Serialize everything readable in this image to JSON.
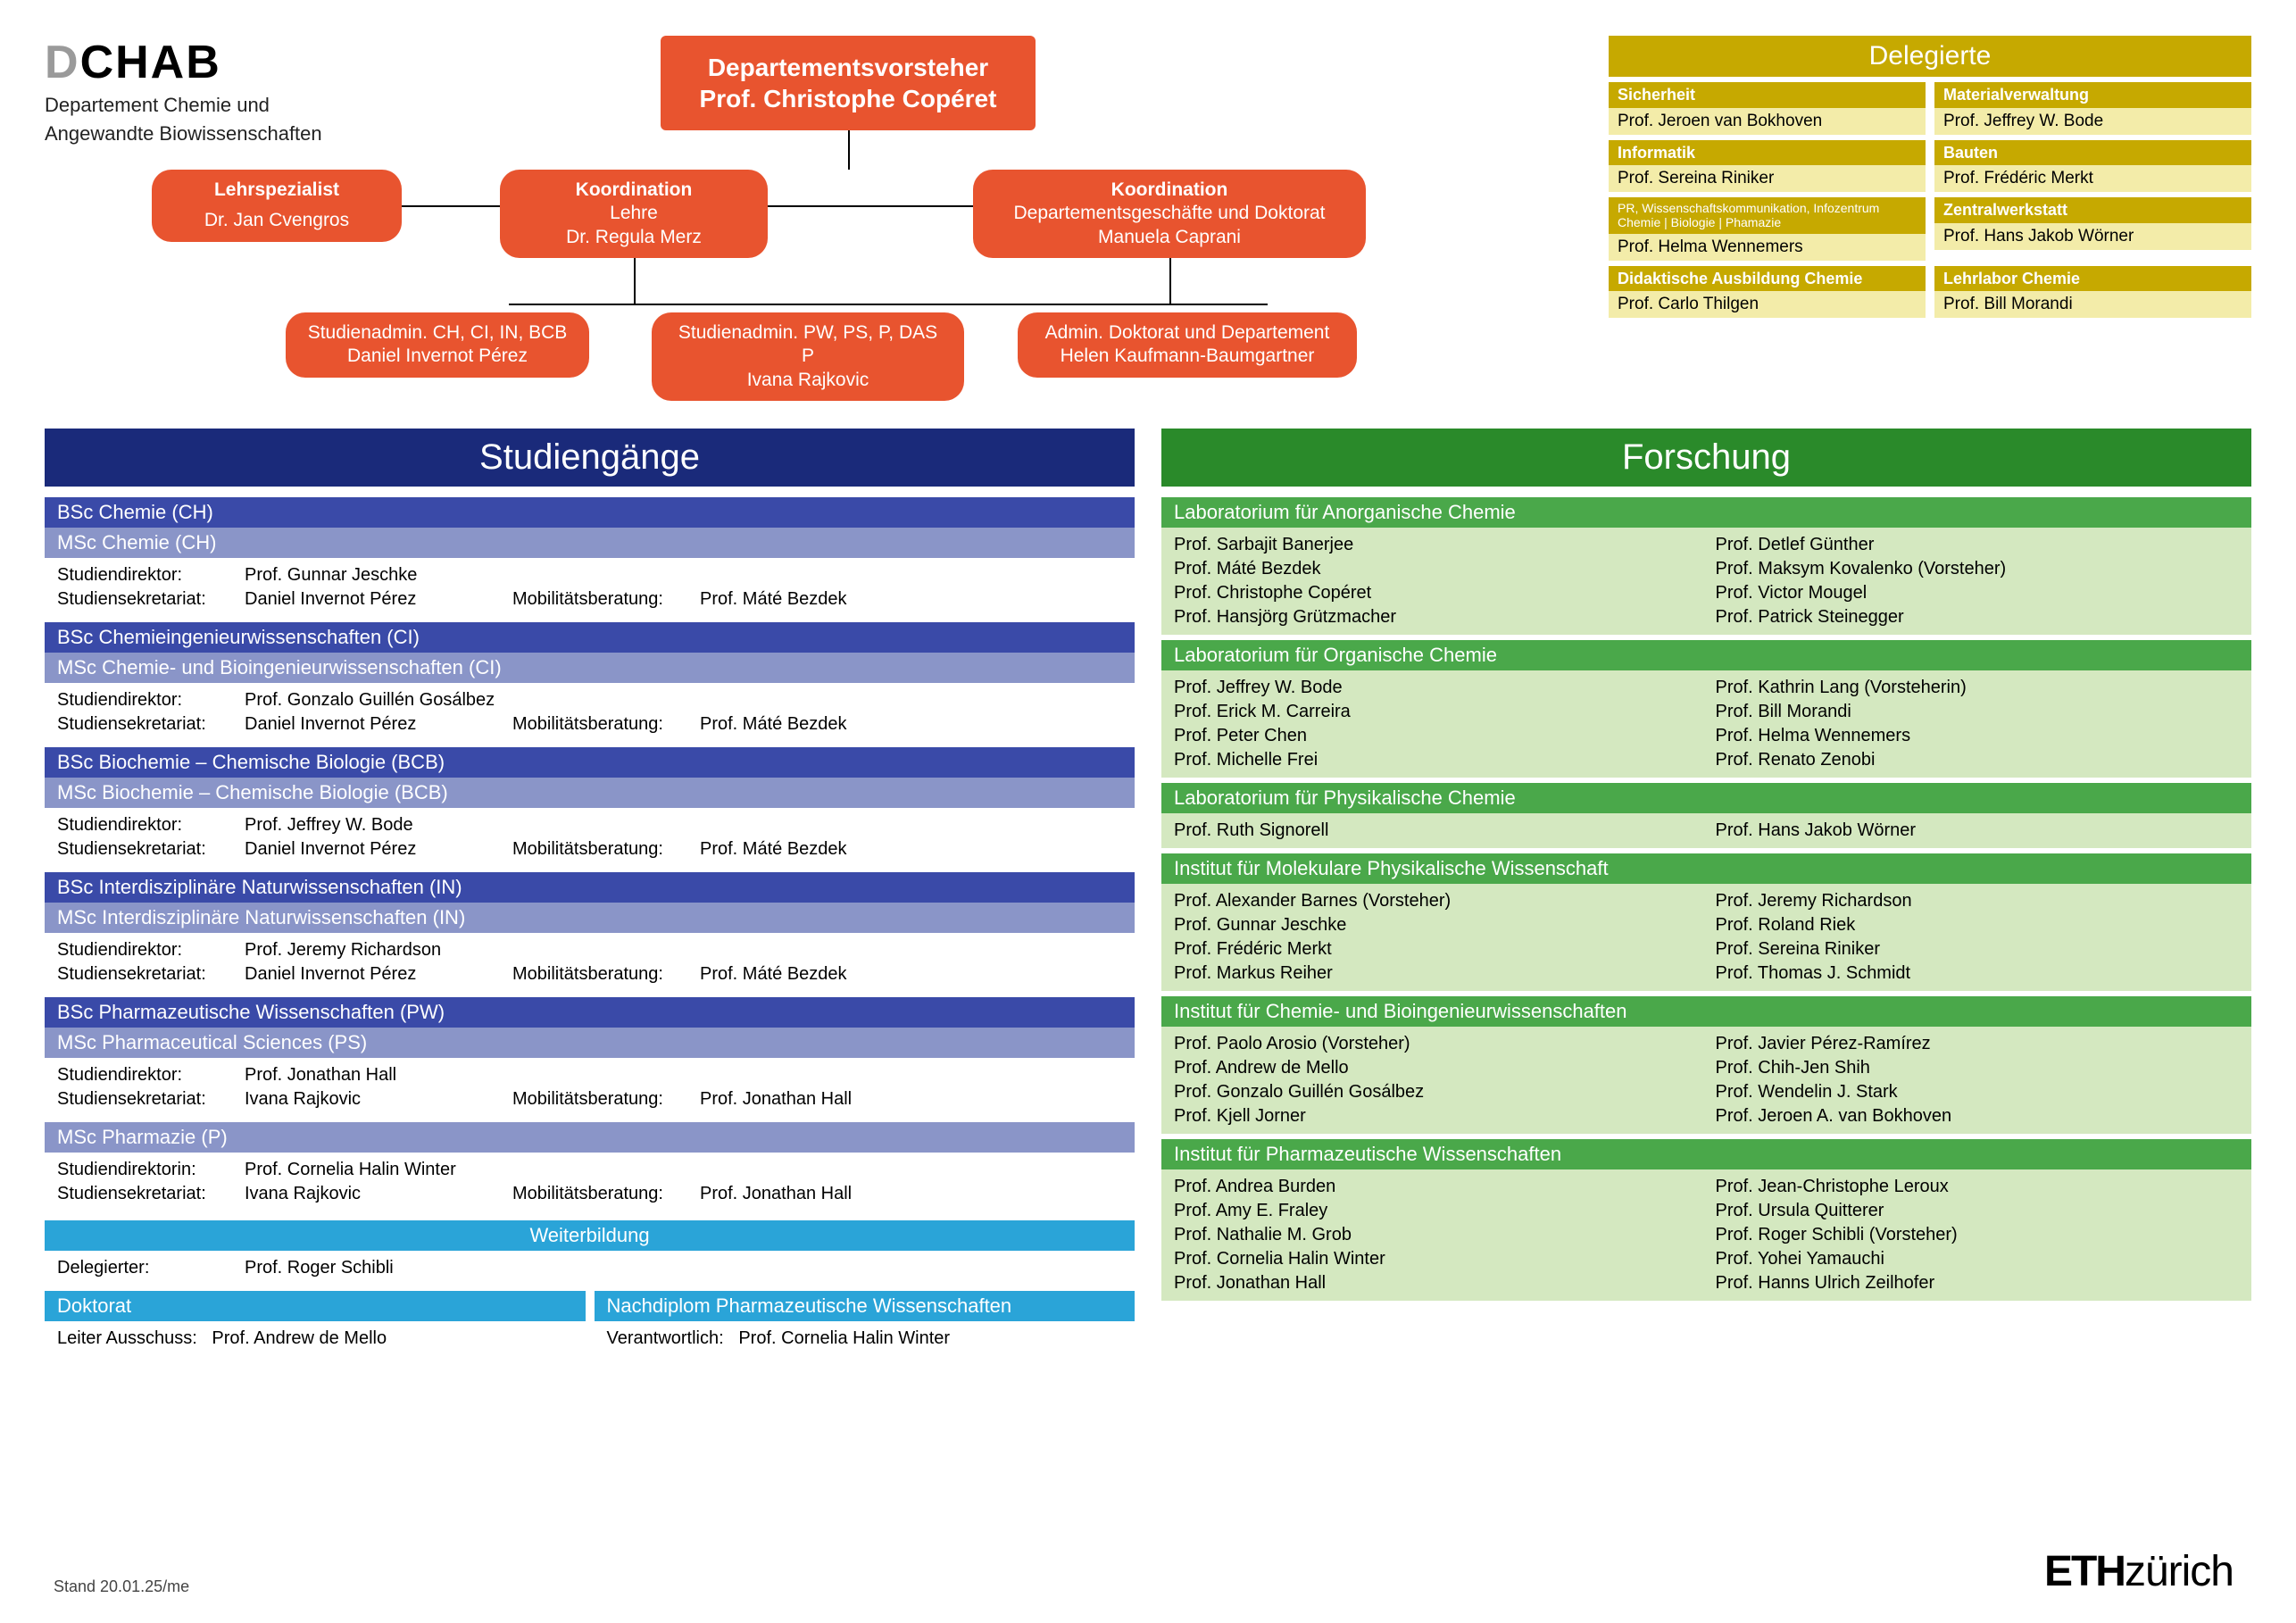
{
  "colors": {
    "orange": "#e8542f",
    "olive": "#c6a900",
    "olive_light": "#f3eca9",
    "blue_dark": "#1a2a7a",
    "blue_med": "#3a4aa8",
    "blue_light": "#8a95c8",
    "cyan": "#2aa4d8",
    "green_dark": "#2a8a2a",
    "green_med": "#4aa84a",
    "green_light": "#d4e8c0",
    "grey": "#9a9a9a"
  },
  "logo": {
    "d": "D",
    "chab": "CHAB",
    "sub1": "Departement Chemie und",
    "sub2": "Angewandte Biowissenschaften"
  },
  "org": {
    "head_t1": "Departementsvorsteher",
    "head_t2": "Prof. Christophe Copéret",
    "lehr_t1": "Lehrspezialist",
    "lehr_t2": "Dr. Jan Cvengros",
    "koord1_t1": "Koordination",
    "koord1_t2": "Lehre",
    "koord1_t3": "Dr. Regula Merz",
    "koord2_t1": "Koordination",
    "koord2_t2": "Departementsgeschäfte und Doktorat",
    "koord2_t3": "Manuela Caprani",
    "sa1_t1": "Studienadmin. CH, CI, IN, BCB",
    "sa1_t2": "Daniel Invernot Pérez",
    "sa2_t1": "Studienadmin. PW, PS, P, DAS P",
    "sa2_t2": "Ivana Rajkovic",
    "sa3_t1": "Admin. Doktorat und Departement",
    "sa3_t2": "Helen Kaufmann-Baumgartner"
  },
  "delegates": {
    "title": "Delegierte",
    "items": [
      {
        "h": "Sicherheit",
        "b": "Prof. Jeroen van Bokhoven"
      },
      {
        "h": "Materialverwaltung",
        "b": "Prof. Jeffrey W. Bode"
      },
      {
        "h": "Informatik",
        "b": "Prof. Sereina Riniker"
      },
      {
        "h": "Bauten",
        "b": "Prof. Frédéric Merkt"
      },
      {
        "h": "PR, Wissenschaftskommunikation, Infozentrum Chemie | Biologie | Phamazie",
        "sm": true,
        "b": "Prof. Helma Wennemers"
      },
      {
        "h": "Zentralwerkstatt",
        "b": "Prof. Hans Jakob Wörner"
      },
      {
        "h": "Didaktische Ausbildung Chemie",
        "b": "Prof. Carlo Thilgen"
      },
      {
        "h": "Lehrlabor Chemie",
        "b": "Prof. Bill Morandi"
      }
    ]
  },
  "study": {
    "title": "Studiengänge",
    "programs": [
      {
        "bsc": "BSc Chemie (CH)",
        "msc": "MSc Chemie (CH)",
        "dir_l": "Studiendirektor:",
        "dir": "Prof. Gunnar Jeschke",
        "sek_l": "Studiensekretariat:",
        "sek": "Daniel Invernot Pérez",
        "mob_l": "Mobilitätsberatung:",
        "mob": "Prof. Máté Bezdek"
      },
      {
        "bsc": "BSc Chemieingenieurwissenschaften (CI)",
        "msc": "MSc Chemie- und Bioingenieurwissenschaften (CI)",
        "dir_l": "Studiendirektor:",
        "dir": "Prof. Gonzalo Guillén Gosálbez",
        "sek_l": "Studiensekretariat:",
        "sek": "Daniel Invernot Pérez",
        "mob_l": "Mobilitätsberatung:",
        "mob": "Prof. Máté Bezdek"
      },
      {
        "bsc": "BSc Biochemie – Chemische Biologie (BCB)",
        "msc": "MSc Biochemie – Chemische Biologie (BCB)",
        "dir_l": "Studiendirektor:",
        "dir": "Prof. Jeffrey W. Bode",
        "sek_l": "Studiensekretariat:",
        "sek": "Daniel Invernot Pérez",
        "mob_l": "Mobilitätsberatung:",
        "mob": "Prof. Máté Bezdek"
      },
      {
        "bsc": "BSc Interdisziplinäre Naturwissenschaften (IN)",
        "msc": "MSc Interdisziplinäre Naturwissenschaften (IN)",
        "dir_l": "Studiendirektor:",
        "dir": "Prof. Jeremy Richardson",
        "sek_l": "Studiensekretariat:",
        "sek": "Daniel Invernot Pérez",
        "mob_l": "Mobilitätsberatung:",
        "mob": "Prof. Máté Bezdek"
      },
      {
        "bsc": "BSc Pharmazeutische Wissenschaften (PW)",
        "msc": "MSc Pharmaceutical Sciences (PS)",
        "dir_l": "Studiendirektor:",
        "dir": "Prof. Jonathan Hall",
        "sek_l": "Studiensekretariat:",
        "sek": "Ivana Rajkovic",
        "mob_l": "Mobilitätsberatung:",
        "mob": "Prof. Jonathan Hall"
      }
    ],
    "p_only": {
      "msc": "MSc Pharmazie (P)",
      "dir_l": "Studiendirektorin:",
      "dir": "Prof. Cornelia Halin Winter",
      "sek_l": "Studiensekretariat:",
      "sek": "Ivana Rajkovic",
      "mob_l": "Mobilitätsberatung:",
      "mob": "Prof. Jonathan Hall"
    },
    "wb_title": "Weiterbildung",
    "wb_del_l": "Delegierter:",
    "wb_del": "Prof. Roger Schibli",
    "dok_title": "Doktorat",
    "dok_l": "Leiter Ausschuss:",
    "dok": "Prof. Andrew de Mello",
    "nd_title": "Nachdiplom Pharmazeutische Wissenschaften",
    "nd_l": "Verantwortlich:",
    "nd": "Prof. Cornelia Halin Winter"
  },
  "research": {
    "title": "Forschung",
    "labs": [
      {
        "h": "Laboratorium für Anorganische Chemie",
        "left": [
          "Prof. Sarbajit Banerjee",
          "Prof. Máté Bezdek",
          "Prof. Christophe Copéret",
          "Prof. Hansjörg Grützmacher"
        ],
        "right": [
          "Prof. Detlef Günther",
          "Prof. Maksym Kovalenko (Vorsteher)",
          "Prof. Victor Mougel",
          "Prof. Patrick Steinegger"
        ]
      },
      {
        "h": "Laboratorium für Organische Chemie",
        "left": [
          "Prof. Jeffrey W. Bode",
          "Prof. Erick M. Carreira",
          "Prof. Peter Chen",
          "Prof. Michelle Frei"
        ],
        "right": [
          "Prof. Kathrin Lang (Vorsteherin)",
          "Prof. Bill Morandi",
          "Prof. Helma Wennemers",
          "Prof. Renato Zenobi"
        ]
      },
      {
        "h": "Laboratorium für Physikalische Chemie",
        "left": [
          "Prof. Ruth Signorell"
        ],
        "right": [
          "Prof. Hans Jakob Wörner"
        ]
      },
      {
        "h": "Institut für Molekulare Physikalische Wissenschaft",
        "left": [
          "Prof. Alexander Barnes (Vorsteher)",
          "Prof. Gunnar Jeschke",
          "Prof. Frédéric Merkt",
          "Prof. Markus Reiher"
        ],
        "right": [
          "Prof. Jeremy Richardson",
          "Prof. Roland Riek",
          "Prof. Sereina Riniker",
          "Prof. Thomas J. Schmidt"
        ]
      },
      {
        "h": "Institut für Chemie- und Bioingenieurwissenschaften",
        "left": [
          "Prof. Paolo Arosio (Vorsteher)",
          "Prof. Andrew de Mello",
          "Prof. Gonzalo Guillén Gosálbez",
          "Prof. Kjell Jorner"
        ],
        "right": [
          "Prof. Javier Pérez-Ramírez",
          "Prof. Chih-Jen Shih",
          "Prof. Wendelin J. Stark",
          "Prof. Jeroen A. van Bokhoven"
        ]
      },
      {
        "h": "Institut für Pharmazeutische Wissenschaften",
        "left": [
          "Prof. Andrea Burden",
          "Prof. Amy E. Fraley",
          "Prof. Nathalie M. Grob",
          "Prof. Cornelia Halin Winter",
          "Prof. Jonathan Hall"
        ],
        "right": [
          "Prof. Jean-Christophe Leroux",
          "Prof. Ursula Quitterer",
          "Prof. Roger Schibli (Vorsteher)",
          "Prof. Yohei Yamauchi",
          "Prof. Hanns Ulrich Zeilhofer"
        ]
      }
    ]
  },
  "footer": {
    "stand": "Stand 20.01.25/me",
    "eth_b": "ETH",
    "eth_r": "zürich"
  }
}
